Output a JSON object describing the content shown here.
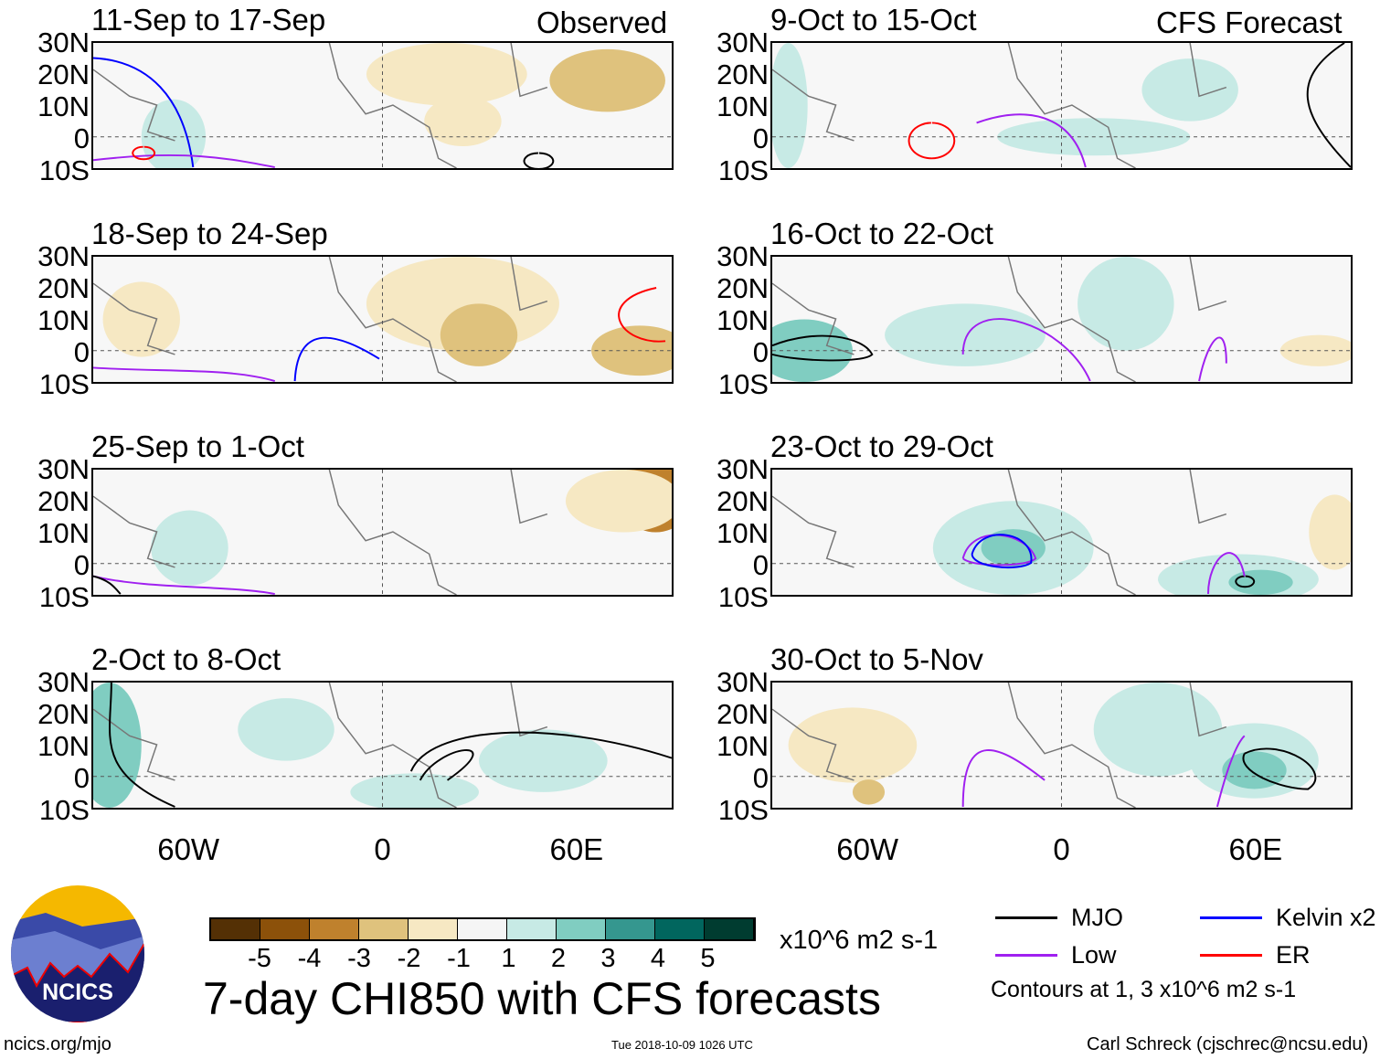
{
  "headers": {
    "observed": "Observed",
    "forecast": "CFS Forecast"
  },
  "panels": [
    {
      "title": "11-Sep to 17-Sep",
      "group": "observed"
    },
    {
      "title": "18-Sep to 24-Sep",
      "group": "observed"
    },
    {
      "title": "25-Sep to 1-Oct",
      "group": "observed"
    },
    {
      "title": "2-Oct to 8-Oct",
      "group": "observed"
    },
    {
      "title": "9-Oct to 15-Oct",
      "group": "forecast"
    },
    {
      "title": "16-Oct to 22-Oct",
      "group": "forecast"
    },
    {
      "title": "23-Oct to 29-Oct",
      "group": "forecast"
    },
    {
      "title": "30-Oct to 5-Nov",
      "group": "forecast"
    }
  ],
  "lat_labels": [
    "30N",
    "20N",
    "10N",
    "0",
    "10S"
  ],
  "lon_labels": [
    "60W",
    "0",
    "60E"
  ],
  "colorbar": {
    "colors": [
      "#543005",
      "#8c510a",
      "#bf812d",
      "#dfc27d",
      "#f6e8c3",
      "#f5f5f5",
      "#c7eae5",
      "#80cdc1",
      "#35978f",
      "#01665e",
      "#003c30"
    ],
    "labels": [
      "-5",
      "-4",
      "-3",
      "-2",
      "-1",
      "1",
      "2",
      "3",
      "4",
      "5"
    ],
    "units": "x10^6 m2 s-1"
  },
  "title": "7-day CHI850 with CFS forecasts",
  "legend": [
    {
      "label": "MJO",
      "color": "#000000"
    },
    {
      "label": "Kelvin x2",
      "color": "#0000ff"
    },
    {
      "label": "Low",
      "color": "#a020f0"
    },
    {
      "label": "ER",
      "color": "#ff0000"
    }
  ],
  "contour_note": "Contours at 1, 3 x10^6 m2 s-1",
  "logo_text": "NCICS",
  "footer": {
    "url": "ncics.org/mjo",
    "timestamp": "Tue 2018-10-09 1026 UTC",
    "author": "Carl Schreck (cjschrec@ncsu.edu)"
  },
  "chart_data": {
    "type": "heatmap",
    "xlabel": "",
    "ylabel": "",
    "xlim": [
      -90,
      90
    ],
    "ylim": [
      -10,
      30
    ],
    "units": "x10^6 m2 s-1",
    "title": "7-day CHI850 with CFS forecasts"
  }
}
